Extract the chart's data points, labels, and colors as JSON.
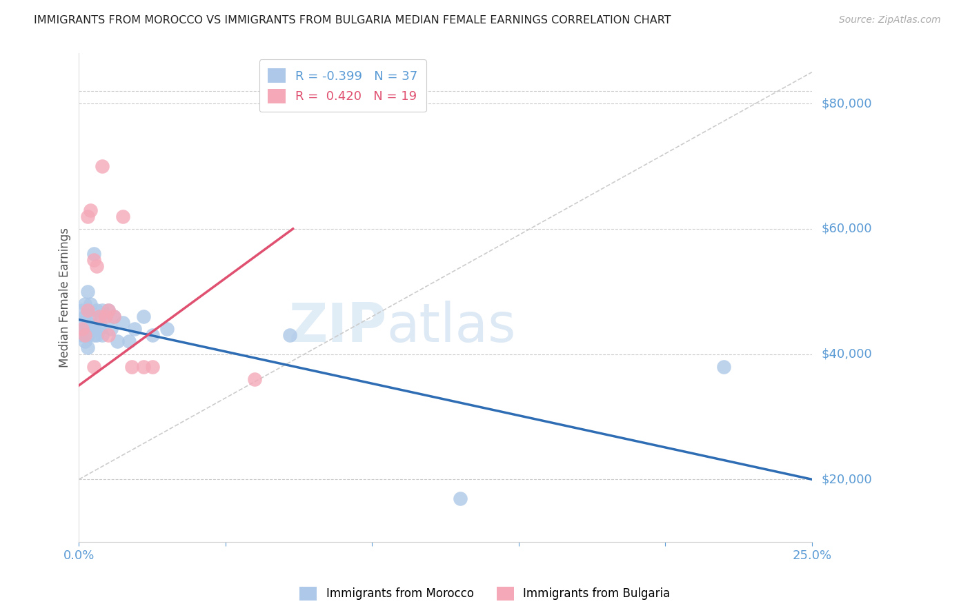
{
  "title": "IMMIGRANTS FROM MOROCCO VS IMMIGRANTS FROM BULGARIA MEDIAN FEMALE EARNINGS CORRELATION CHART",
  "source": "Source: ZipAtlas.com",
  "ylabel": "Median Female Earnings",
  "yticks": [
    20000,
    40000,
    60000,
    80000
  ],
  "ytick_labels": [
    "$20,000",
    "$40,000",
    "$60,000",
    "$80,000"
  ],
  "xlim": [
    0,
    0.25
  ],
  "ylim": [
    10000,
    88000
  ],
  "watermark_zip": "ZIP",
  "watermark_atlas": "atlas",
  "legend_entries": [
    {
      "label": "Immigrants from Morocco",
      "R": "-0.399",
      "N": 37,
      "color": "#adc8e8"
    },
    {
      "label": "Immigrants from Bulgaria",
      "R": "0.420",
      "N": 19,
      "color": "#f4a8b8"
    }
  ],
  "morocco_x": [
    0.001,
    0.001,
    0.001,
    0.002,
    0.002,
    0.002,
    0.002,
    0.003,
    0.003,
    0.003,
    0.003,
    0.004,
    0.004,
    0.004,
    0.005,
    0.005,
    0.005,
    0.006,
    0.006,
    0.007,
    0.007,
    0.008,
    0.008,
    0.009,
    0.01,
    0.011,
    0.012,
    0.013,
    0.015,
    0.017,
    0.019,
    0.022,
    0.025,
    0.03,
    0.072,
    0.22,
    0.13
  ],
  "morocco_y": [
    45000,
    47000,
    43000,
    46000,
    44000,
    48000,
    42000,
    50000,
    45000,
    43000,
    41000,
    46000,
    48000,
    44000,
    56000,
    44000,
    43000,
    47000,
    43000,
    45000,
    44000,
    47000,
    43000,
    46000,
    47000,
    44000,
    46000,
    42000,
    45000,
    42000,
    44000,
    46000,
    43000,
    44000,
    43000,
    38000,
    17000
  ],
  "bulgaria_x": [
    0.001,
    0.002,
    0.003,
    0.003,
    0.004,
    0.005,
    0.005,
    0.006,
    0.007,
    0.008,
    0.009,
    0.01,
    0.01,
    0.012,
    0.015,
    0.018,
    0.022,
    0.025,
    0.06
  ],
  "bulgaria_y": [
    44000,
    43000,
    62000,
    47000,
    63000,
    55000,
    38000,
    54000,
    46000,
    70000,
    46000,
    47000,
    43000,
    46000,
    62000,
    38000,
    38000,
    38000,
    36000
  ],
  "dot_blue": "#adc8e8",
  "dot_pink": "#f4a8b8",
  "trend_blue": "#2e6db4",
  "trend_pink": "#e05070",
  "dash_color": "#cccccc",
  "grid_color": "#cccccc",
  "axis_color": "#5b9bd5",
  "background": "#ffffff",
  "morocco_trend_x": [
    0.0,
    0.25
  ],
  "morocco_trend_y": [
    45500,
    20000
  ],
  "bulgaria_trend_x": [
    0.0,
    0.073
  ],
  "bulgaria_trend_y": [
    35000,
    60000
  ]
}
